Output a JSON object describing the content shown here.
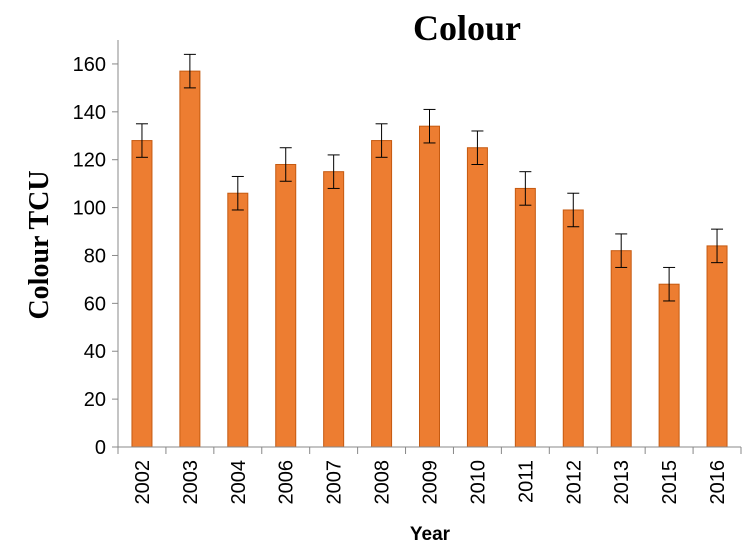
{
  "chart_data": {
    "type": "bar",
    "title": "Colour",
    "xlabel": "Year",
    "ylabel": "Colour  TCU",
    "ylim": [
      0,
      170
    ],
    "yticks": [
      0,
      20,
      40,
      60,
      80,
      100,
      120,
      140,
      160
    ],
    "grid": false,
    "legend": "none",
    "categories": [
      "2002",
      "2003",
      "2004",
      "2006",
      "2007",
      "2008",
      "2009",
      "2010",
      "2011",
      "2012",
      "2013",
      "2015",
      "2016"
    ],
    "values": [
      128,
      157,
      106,
      118,
      115,
      128,
      134,
      125,
      108,
      99,
      82,
      68,
      84
    ],
    "errors": [
      7,
      7,
      7,
      7,
      7,
      7,
      7,
      7,
      7,
      7,
      7,
      7,
      7
    ],
    "bar_color": "#ED7D31",
    "bar_edge_color": "#C55A11"
  }
}
